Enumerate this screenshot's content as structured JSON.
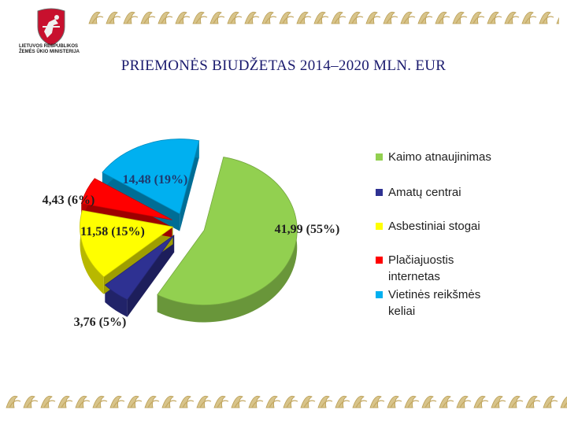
{
  "header": {
    "logo_lines": [
      "LIETUVOS RESPUBLIKOS",
      "ŽEMĖS ŪKIO MINISTERIJA"
    ],
    "title": "PRIEMONĖS  BIUDŽETAS 2014–2020 MLN. EUR"
  },
  "chart_data": {
    "type": "pie",
    "title": "PRIEMONĖS  BIUDŽETAS 2014–2020 MLN. EUR",
    "slices": [
      {
        "name": "Kaimo atnaujinimas",
        "value": 41.99,
        "percent": 55,
        "label": "41,99 (55%)",
        "color": "#92d050"
      },
      {
        "name": "Amatų centrai",
        "value": 3.76,
        "percent": 5,
        "label": "3,76 (5%)",
        "color": "#2e3192"
      },
      {
        "name": "Asbestiniai stogai",
        "value": 11.58,
        "percent": 15,
        "label": "11,58 (15%)",
        "color": "#ffff00"
      },
      {
        "name": "Plačiajuostis internetas",
        "value": 4.43,
        "percent": 6,
        "label": "4,43 (6%)",
        "color": "#ff0000"
      },
      {
        "name": "Vietinės reikšmės keliai",
        "value": 14.48,
        "percent": 19,
        "label": "14,48 (19%)",
        "color": "#00b0f0"
      }
    ],
    "legend": {
      "placement": "right",
      "entries": [
        [
          "Kaimo atnaujinimas"
        ],
        [
          "Amatų centrai"
        ],
        [
          "Asbestiniai stogai"
        ],
        [
          "Plačiajuostis",
          "internetas"
        ],
        [
          "Vietinės reikšmės",
          "keliai"
        ]
      ]
    },
    "style": "3d-exploded"
  }
}
